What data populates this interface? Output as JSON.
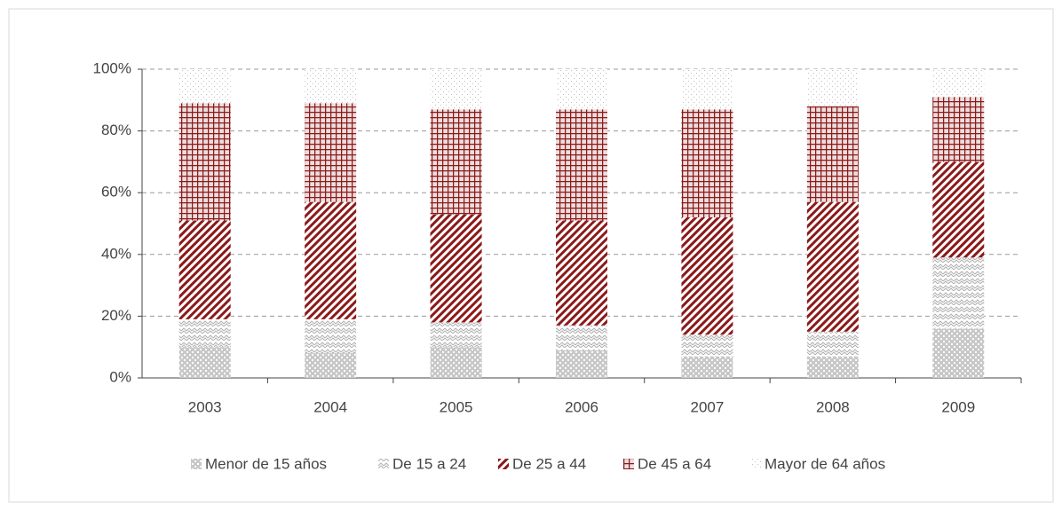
{
  "chart_data": {
    "type": "stacked_bar",
    "categories": [
      "2003",
      "2004",
      "2005",
      "2006",
      "2007",
      "2008",
      "2009"
    ],
    "series": [
      {
        "name": "Menor de 15 años",
        "color": "#9a9a9a",
        "values": [
          10,
          8,
          10,
          9,
          7,
          7,
          16
        ]
      },
      {
        "name": "De 15 a 24",
        "color": "#b0b0b0",
        "values": [
          9,
          11,
          8,
          8,
          7,
          8,
          23
        ]
      },
      {
        "name": "De 25 a 44",
        "color": "#8b1a1a",
        "values": [
          32,
          38,
          35,
          34,
          38,
          42,
          31
        ]
      },
      {
        "name": "De 45 a 64",
        "color": "#8b1a1a",
        "values": [
          38,
          32,
          34,
          36,
          35,
          31,
          21
        ]
      },
      {
        "name": "Mayor de 64 años",
        "color": "#c0c0c0",
        "values": [
          11,
          11,
          13,
          13,
          13,
          12,
          9
        ]
      }
    ],
    "ylim": [
      0,
      100
    ],
    "yticks": [
      {
        "value": 0,
        "label": "0%"
      },
      {
        "value": 20,
        "label": "20%"
      },
      {
        "value": 40,
        "label": "40%"
      },
      {
        "value": 60,
        "label": "60%"
      },
      {
        "value": 80,
        "label": "80%"
      },
      {
        "value": 100,
        "label": "100%"
      }
    ],
    "grid": true
  }
}
